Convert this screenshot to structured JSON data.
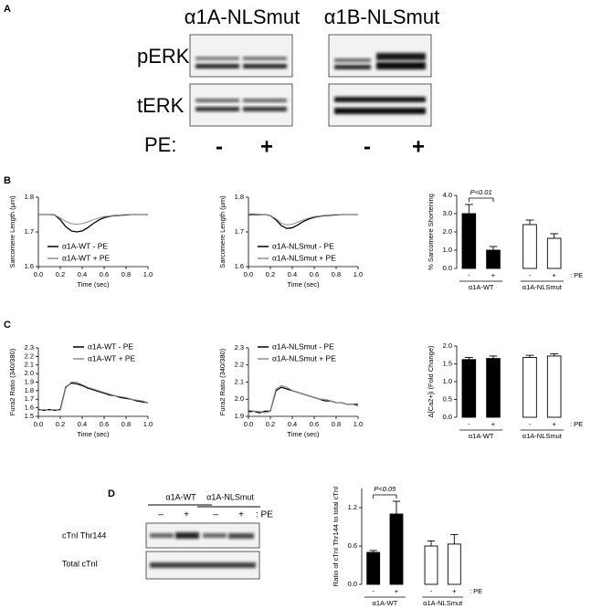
{
  "panel_labels": [
    "A",
    "B",
    "C",
    "D"
  ],
  "blot_a": {
    "columns": [
      "α1A-NLSmut",
      "α1B-NLSmut"
    ],
    "rows": [
      "pERK",
      "tERK"
    ],
    "treatment_label": "PE:",
    "treatment_signs": [
      "-",
      "+",
      "-",
      "+"
    ]
  },
  "blot_d": {
    "columns": [
      "α1A-WT",
      "α1A-NLSmut"
    ],
    "treatment_signs": [
      "–",
      "+",
      "–",
      "+"
    ],
    "treatment_label": ": PE",
    "rows": [
      "cTnI Thr144",
      "Total cTnI"
    ]
  },
  "chart_data": [
    {
      "type": "line",
      "xlabel": "Time (sec)",
      "ylabel": "Sarcomere Length (µm)",
      "x": [
        0,
        0.05,
        0.1,
        0.15,
        0.2,
        0.25,
        0.3,
        0.35,
        0.4,
        0.45,
        0.5,
        0.55,
        0.6,
        0.65,
        0.7,
        0.75,
        0.8,
        0.85,
        0.9,
        0.95,
        1.0
      ],
      "xlim": [
        0,
        1
      ],
      "xticks": [
        {
          "value": 0,
          "label": "0.0"
        },
        0.2,
        0.4,
        0.6,
        0.8,
        {
          "value": 1,
          "label": "1.0"
        }
      ],
      "ylim": [
        1.6,
        1.8
      ],
      "yticks": [
        1.6,
        1.7,
        1.8
      ],
      "series": [
        {
          "name": "α1A-WT - PE",
          "color": "#000000",
          "values": [
            1.75,
            1.75,
            1.75,
            1.749,
            1.735,
            1.715,
            1.703,
            1.7,
            1.703,
            1.712,
            1.724,
            1.734,
            1.741,
            1.745,
            1.747,
            1.748,
            1.749,
            1.75,
            1.75,
            1.75,
            1.75
          ]
        },
        {
          "name": "α1A-WT + PE",
          "color": "#8c8c8c",
          "values": [
            1.75,
            1.75,
            1.75,
            1.749,
            1.74,
            1.73,
            1.724,
            1.722,
            1.724,
            1.729,
            1.735,
            1.74,
            1.744,
            1.746,
            1.748,
            1.749,
            1.75,
            1.75,
            1.75,
            1.75,
            1.75
          ]
        }
      ]
    },
    {
      "type": "line",
      "xlabel": "Time (sec)",
      "ylabel": "Sarcomere Length (µm)",
      "x": [
        0,
        0.05,
        0.1,
        0.15,
        0.2,
        0.25,
        0.3,
        0.35,
        0.4,
        0.45,
        0.5,
        0.55,
        0.6,
        0.65,
        0.7,
        0.75,
        0.8,
        0.85,
        0.9,
        0.95,
        1.0
      ],
      "xlim": [
        0,
        1
      ],
      "xticks": [
        {
          "value": 0,
          "label": "0.0"
        },
        0.2,
        0.4,
        0.6,
        0.8,
        {
          "value": 1,
          "label": "1.0"
        }
      ],
      "ylim": [
        1.6,
        1.8
      ],
      "yticks": [
        1.6,
        1.7,
        1.8
      ],
      "series": [
        {
          "name": "α1A-NLSmut - PE",
          "color": "#000000",
          "values": [
            1.75,
            1.75,
            1.75,
            1.75,
            1.747,
            1.735,
            1.718,
            1.71,
            1.712,
            1.72,
            1.73,
            1.737,
            1.742,
            1.745,
            1.747,
            1.748,
            1.749,
            1.75,
            1.75,
            1.75,
            1.75
          ]
        },
        {
          "name": "α1A-NLSmut + PE",
          "color": "#8c8c8c",
          "values": [
            1.752,
            1.752,
            1.751,
            1.75,
            1.747,
            1.738,
            1.725,
            1.72,
            1.722,
            1.728,
            1.735,
            1.74,
            1.744,
            1.746,
            1.748,
            1.749,
            1.75,
            1.75,
            1.75,
            1.75,
            1.75
          ]
        }
      ]
    },
    {
      "type": "bar",
      "ylabel": "% Sarcomere Shortening",
      "categories": [
        "-",
        "+",
        "-",
        "+"
      ],
      "groups": [
        "α1A-WT",
        "α1A-NLSmut"
      ],
      "treatment_label": ": PE",
      "values": [
        3.0,
        1.0,
        2.4,
        1.65
      ],
      "errors": [
        0.5,
        0.2,
        0.25,
        0.25
      ],
      "colors": [
        "#000000",
        "#000000",
        "#ffffff",
        "#ffffff"
      ],
      "ylim": [
        0,
        4
      ],
      "yticks": [
        {
          "value": 0,
          "label": "0.0"
        },
        {
          "value": 1,
          "label": "1.0"
        },
        {
          "value": 2,
          "label": "2.0"
        },
        {
          "value": 3,
          "label": "3.0"
        },
        {
          "value": 4,
          "label": "4.0"
        }
      ],
      "annotation": "P<0.01"
    },
    {
      "type": "line",
      "xlabel": "Time (sec)",
      "ylabel": "Fura2 Ratio (340/380)",
      "x": [
        0,
        0.05,
        0.1,
        0.15,
        0.2,
        0.25,
        0.3,
        0.35,
        0.4,
        0.45,
        0.5,
        0.55,
        0.6,
        0.65,
        0.7,
        0.75,
        0.8,
        0.85,
        0.9,
        0.95,
        1.0
      ],
      "xlim": [
        0,
        1
      ],
      "xticks": [
        {
          "value": 0,
          "label": "0.0"
        },
        0.2,
        0.4,
        0.6,
        0.8,
        {
          "value": 1,
          "label": "1.0"
        }
      ],
      "ylim": [
        1.5,
        2.3
      ],
      "yticks": [
        1.5,
        1.6,
        1.7,
        1.8,
        1.9,
        {
          "value": 2,
          "label": "2.0"
        },
        2.1,
        2.2,
        2.3
      ],
      "series": [
        {
          "name": "α1A-WT - PE",
          "color": "#000000",
          "values": [
            1.58,
            1.57,
            1.58,
            1.57,
            1.58,
            1.84,
            1.89,
            1.88,
            1.86,
            1.83,
            1.81,
            1.79,
            1.77,
            1.75,
            1.74,
            1.72,
            1.71,
            1.7,
            1.68,
            1.67,
            1.66
          ]
        },
        {
          "name": "α1A-WT + PE",
          "color": "#8c8c8c",
          "values": [
            1.57,
            1.58,
            1.57,
            1.58,
            1.57,
            1.83,
            1.9,
            1.9,
            1.87,
            1.84,
            1.82,
            1.8,
            1.78,
            1.76,
            1.74,
            1.73,
            1.72,
            1.7,
            1.69,
            1.68,
            1.66
          ]
        }
      ]
    },
    {
      "type": "line",
      "xlabel": "Time (sec)",
      "ylabel": "Fura2 Ratio (340/380)",
      "x": [
        0,
        0.05,
        0.1,
        0.15,
        0.2,
        0.25,
        0.3,
        0.35,
        0.4,
        0.45,
        0.5,
        0.55,
        0.6,
        0.65,
        0.7,
        0.75,
        0.8,
        0.85,
        0.9,
        0.95,
        1.0
      ],
      "xlim": [
        0,
        1
      ],
      "xticks": [
        {
          "value": 0,
          "label": "0.0"
        },
        0.2,
        0.4,
        0.6,
        0.8,
        {
          "value": 1,
          "label": "1.0"
        }
      ],
      "ylim": [
        1.9,
        2.3
      ],
      "yticks": [
        1.9,
        {
          "value": 2,
          "label": "2.0"
        },
        2.1,
        2.2,
        2.3
      ],
      "series": [
        {
          "name": "α1A-NLSmut - PE",
          "color": "#000000",
          "values": [
            1.93,
            1.93,
            1.92,
            1.93,
            1.93,
            2.05,
            2.07,
            2.06,
            2.05,
            2.04,
            2.03,
            2.02,
            2.01,
            2.0,
            1.99,
            1.99,
            1.98,
            1.98,
            1.97,
            1.97,
            1.97
          ]
        },
        {
          "name": "α1A-NLSmut + PE",
          "color": "#8c8c8c",
          "values": [
            1.92,
            1.93,
            1.93,
            1.92,
            1.93,
            2.06,
            2.08,
            2.07,
            2.05,
            2.04,
            2.03,
            2.02,
            2.01,
            2.0,
            2.0,
            1.99,
            1.98,
            1.98,
            1.97,
            1.97,
            1.96
          ]
        }
      ]
    },
    {
      "type": "bar",
      "ylabel": "Δ[Ca2+]i (Fold Change)",
      "categories": [
        "-",
        "+",
        "-",
        "+"
      ],
      "groups": [
        "α1A-WT",
        "α1A-NLSmut"
      ],
      "treatment_label": ": PE",
      "values": [
        1.62,
        1.65,
        1.68,
        1.72
      ],
      "errors": [
        0.06,
        0.07,
        0.06,
        0.06
      ],
      "colors": [
        "#000000",
        "#000000",
        "#ffffff",
        "#ffffff"
      ],
      "ylim": [
        0,
        2
      ],
      "yticks": [
        {
          "value": 0,
          "label": "0.0"
        },
        0.5,
        {
          "value": 1,
          "label": "1.0"
        },
        1.5,
        {
          "value": 2,
          "label": "2.0"
        }
      ]
    },
    {
      "type": "bar",
      "ylabel": "Ratio of cTnI Thr144 to total cTnI",
      "categories": [
        "-",
        "+",
        "-",
        "+"
      ],
      "groups": [
        "α1A-WT",
        "α1A-NLSmut"
      ],
      "treatment_label": ": PE",
      "values": [
        0.5,
        1.1,
        0.6,
        0.63
      ],
      "errors": [
        0.03,
        0.2,
        0.08,
        0.15
      ],
      "colors": [
        "#000000",
        "#000000",
        "#ffffff",
        "#ffffff"
      ],
      "ylim": [
        0,
        1.5
      ],
      "yticks": [
        {
          "value": 0,
          "label": "0.0"
        },
        0.6,
        1.2
      ],
      "annotation": "P<0.05"
    }
  ]
}
